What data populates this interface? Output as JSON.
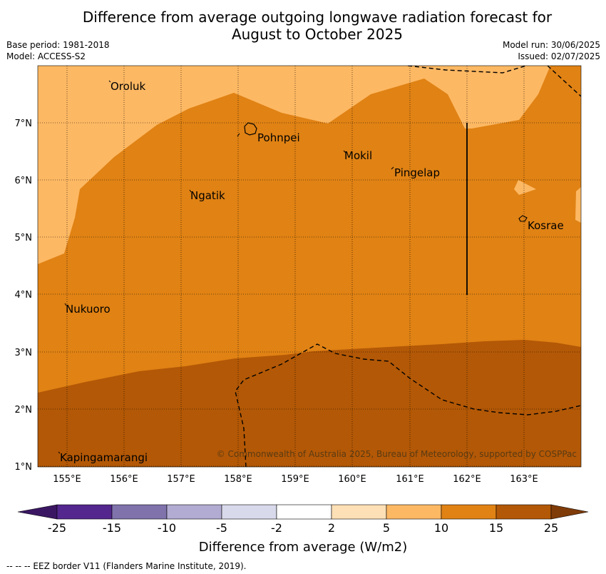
{
  "title_line1": "Difference from average outgoing longwave radiation forecast for",
  "title_line2": "August to October 2025",
  "base_period": "Base period: 1981-2018",
  "model": "Model: ACCESS-S2",
  "model_run": "Model run: 30/06/2025",
  "issued": "Issued: 02/07/2025",
  "latitude_labels": [
    "7°N",
    "6°N",
    "5°N",
    "4°N",
    "3°N",
    "2°N",
    "1°N"
  ],
  "longitude_labels": [
    "155°E",
    "156°E",
    "157°E",
    "158°E",
    "159°E",
    "160°E",
    "161°E",
    "162°E",
    "163°E"
  ],
  "places": [
    "Oroluk",
    "Pohnpei",
    "Mokil",
    "Pingelap",
    "Ngatik",
    "Kosrae",
    "Nukuoro",
    "Kapingamarangi"
  ],
  "copyright": "© Commonwealth of Australia 2025, Bureau of Meteorology, supported by COSPPac",
  "colorbar": {
    "ticks": [
      "-25",
      "-15",
      "-10",
      "-5",
      "-2",
      "2",
      "5",
      "10",
      "15",
      "25"
    ],
    "colors": [
      "#3b1763",
      "#54278f",
      "#8073ac",
      "#b2abd2",
      "#d8daeb",
      "#ffffff",
      "#fee0b6",
      "#fdb863",
      "#e08214",
      "#b35806",
      "#7f3b08"
    ],
    "title": "Difference from average (W/m2)"
  },
  "footer": "--  --  -- EEZ border V11 (Flanders Marine Institute, 2019)."
}
